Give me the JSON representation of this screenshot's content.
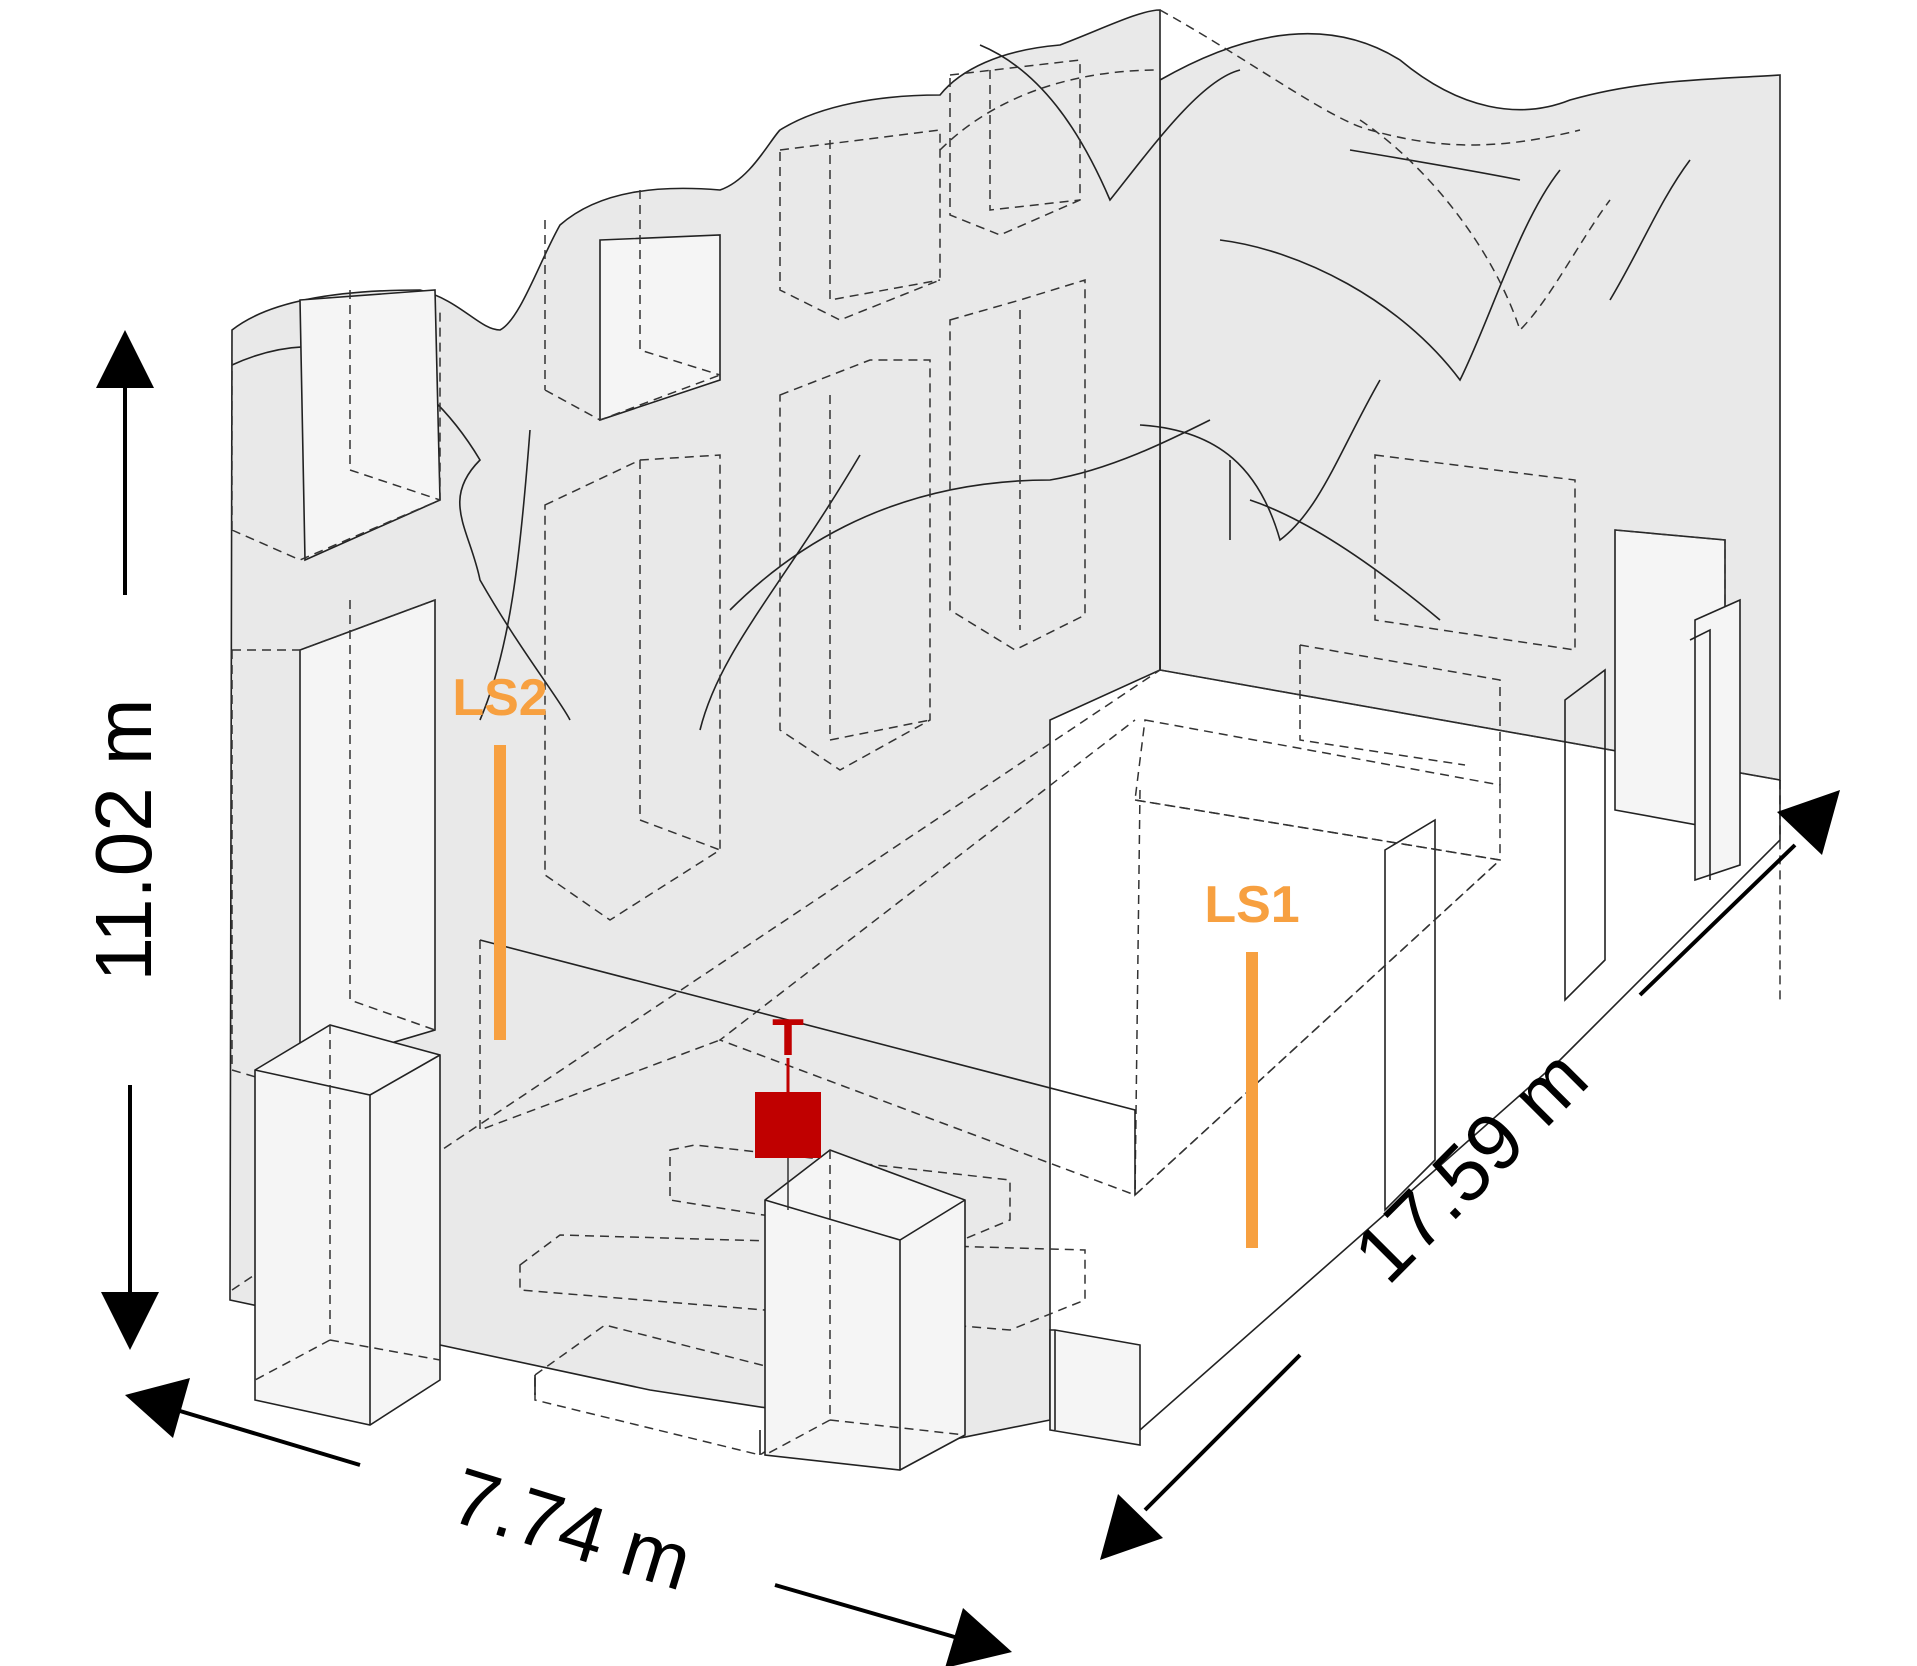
{
  "dimensions": {
    "height": "11.02 m",
    "width": "7.74 m",
    "length": "17.59 m"
  },
  "markers": {
    "ls1": "LS1",
    "ls2": "LS2",
    "target": "T"
  },
  "colors": {
    "loudspeaker": "#f7a040",
    "target": "#c00000",
    "wall_fill": "#e9e9e9",
    "element_fill": "#f5f5f5"
  }
}
